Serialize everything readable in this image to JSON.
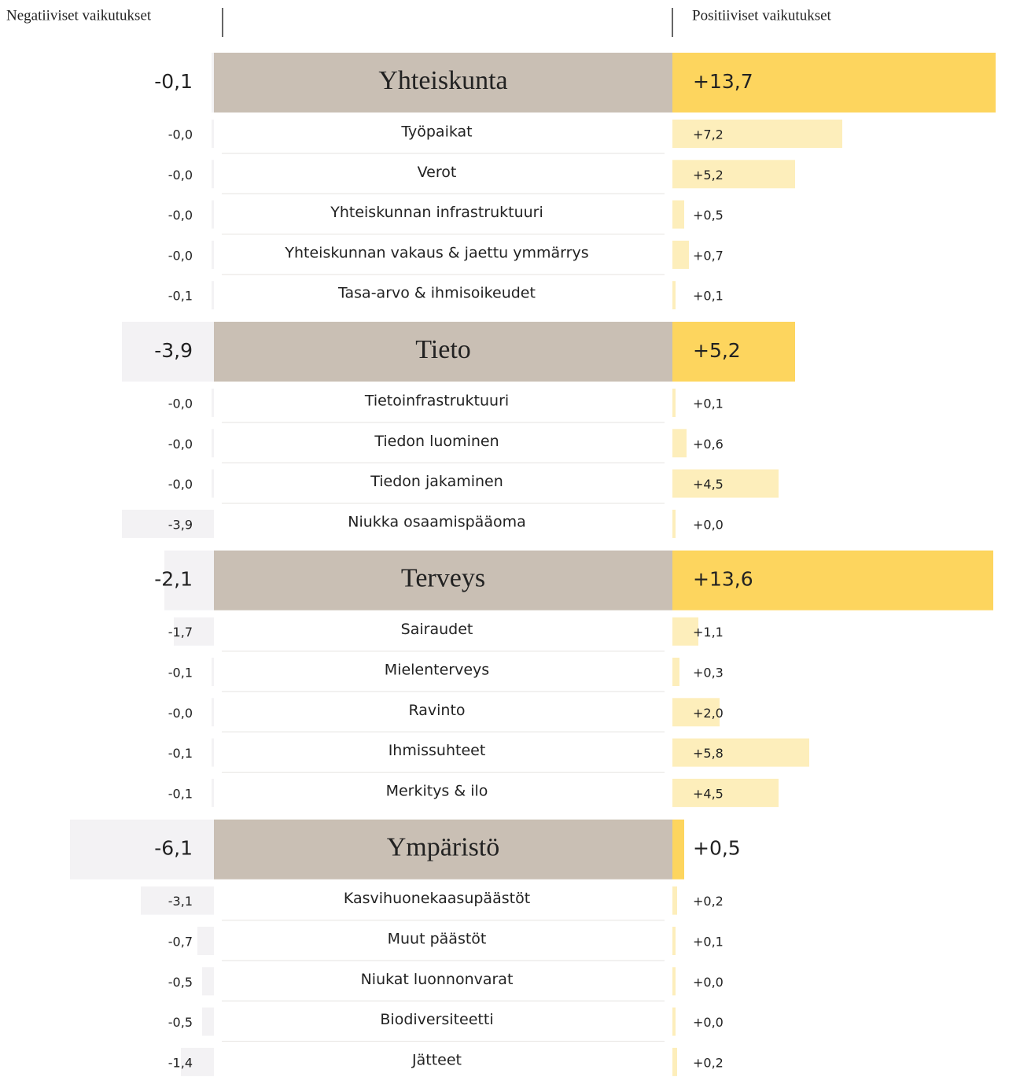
{
  "chart_data": {
    "type": "diverging_bar",
    "left_label": "Negatiiviset vaikutukset",
    "right_label": "Positiiviset vaikutukset",
    "groups": [
      {
        "name": "Yhteiskunta",
        "negative": -0.1,
        "negative_label": "-0,1",
        "positive": 13.7,
        "positive_label": "+13,7",
        "items": [
          {
            "name": "Työpaikat",
            "negative": -0.0,
            "negative_label": "-0,0",
            "positive": 7.2,
            "positive_label": "+7,2"
          },
          {
            "name": "Verot",
            "negative": -0.0,
            "negative_label": "-0,0",
            "positive": 5.2,
            "positive_label": "+5,2"
          },
          {
            "name": "Yhteiskunnan infrastruktuuri",
            "negative": -0.0,
            "negative_label": "-0,0",
            "positive": 0.5,
            "positive_label": "+0,5"
          },
          {
            "name": "Yhteiskunnan vakaus & jaettu ymmärrys",
            "negative": -0.0,
            "negative_label": "-0,0",
            "positive": 0.7,
            "positive_label": "+0,7"
          },
          {
            "name": "Tasa-arvo & ihmisoikeudet",
            "negative": -0.1,
            "negative_label": "-0,1",
            "positive": 0.1,
            "positive_label": "+0,1"
          }
        ]
      },
      {
        "name": "Tieto",
        "negative": -3.9,
        "negative_label": "-3,9",
        "positive": 5.2,
        "positive_label": "+5,2",
        "items": [
          {
            "name": "Tietoinfrastruktuuri",
            "negative": -0.0,
            "negative_label": "-0,0",
            "positive": 0.1,
            "positive_label": "+0,1"
          },
          {
            "name": "Tiedon luominen",
            "negative": -0.0,
            "negative_label": "-0,0",
            "positive": 0.6,
            "positive_label": "+0,6"
          },
          {
            "name": "Tiedon jakaminen",
            "negative": -0.0,
            "negative_label": "-0,0",
            "positive": 4.5,
            "positive_label": "+4,5"
          },
          {
            "name": "Niukka osaamispääoma",
            "negative": -3.9,
            "negative_label": "-3,9",
            "positive": 0.0,
            "positive_label": "+0,0"
          }
        ]
      },
      {
        "name": "Terveys",
        "negative": -2.1,
        "negative_label": "-2,1",
        "positive": 13.6,
        "positive_label": "+13,6",
        "items": [
          {
            "name": "Sairaudet",
            "negative": -1.7,
            "negative_label": "-1,7",
            "positive": 1.1,
            "positive_label": "+1,1"
          },
          {
            "name": "Mielenterveys",
            "negative": -0.1,
            "negative_label": "-0,1",
            "positive": 0.3,
            "positive_label": "+0,3"
          },
          {
            "name": "Ravinto",
            "negative": -0.0,
            "negative_label": "-0,0",
            "positive": 2.0,
            "positive_label": "+2,0"
          },
          {
            "name": "Ihmissuhteet",
            "negative": -0.1,
            "negative_label": "-0,1",
            "positive": 5.8,
            "positive_label": "+5,8"
          },
          {
            "name": "Merkitys & ilo",
            "negative": -0.1,
            "negative_label": "-0,1",
            "positive": 4.5,
            "positive_label": "+4,5"
          }
        ]
      },
      {
        "name": "Ympäristö",
        "negative": -6.1,
        "negative_label": "-6,1",
        "positive": 0.5,
        "positive_label": "+0,5",
        "items": [
          {
            "name": "Kasvihuonekaasupäästöt",
            "negative": -3.1,
            "negative_label": "-3,1",
            "positive": 0.2,
            "positive_label": "+0,2"
          },
          {
            "name": "Muut päästöt",
            "negative": -0.7,
            "negative_label": "-0,7",
            "positive": 0.1,
            "positive_label": "+0,1"
          },
          {
            "name": "Niukat luonnonvarat",
            "negative": -0.5,
            "negative_label": "-0,5",
            "positive": 0.0,
            "positive_label": "+0,0"
          },
          {
            "name": "Biodiversiteetti",
            "negative": -0.5,
            "negative_label": "-0,5",
            "positive": 0.0,
            "positive_label": "+0,0"
          },
          {
            "name": "Jätteet",
            "negative": -1.4,
            "negative_label": "-1,4",
            "positive": 0.2,
            "positive_label": "+0,2"
          }
        ]
      }
    ]
  }
}
